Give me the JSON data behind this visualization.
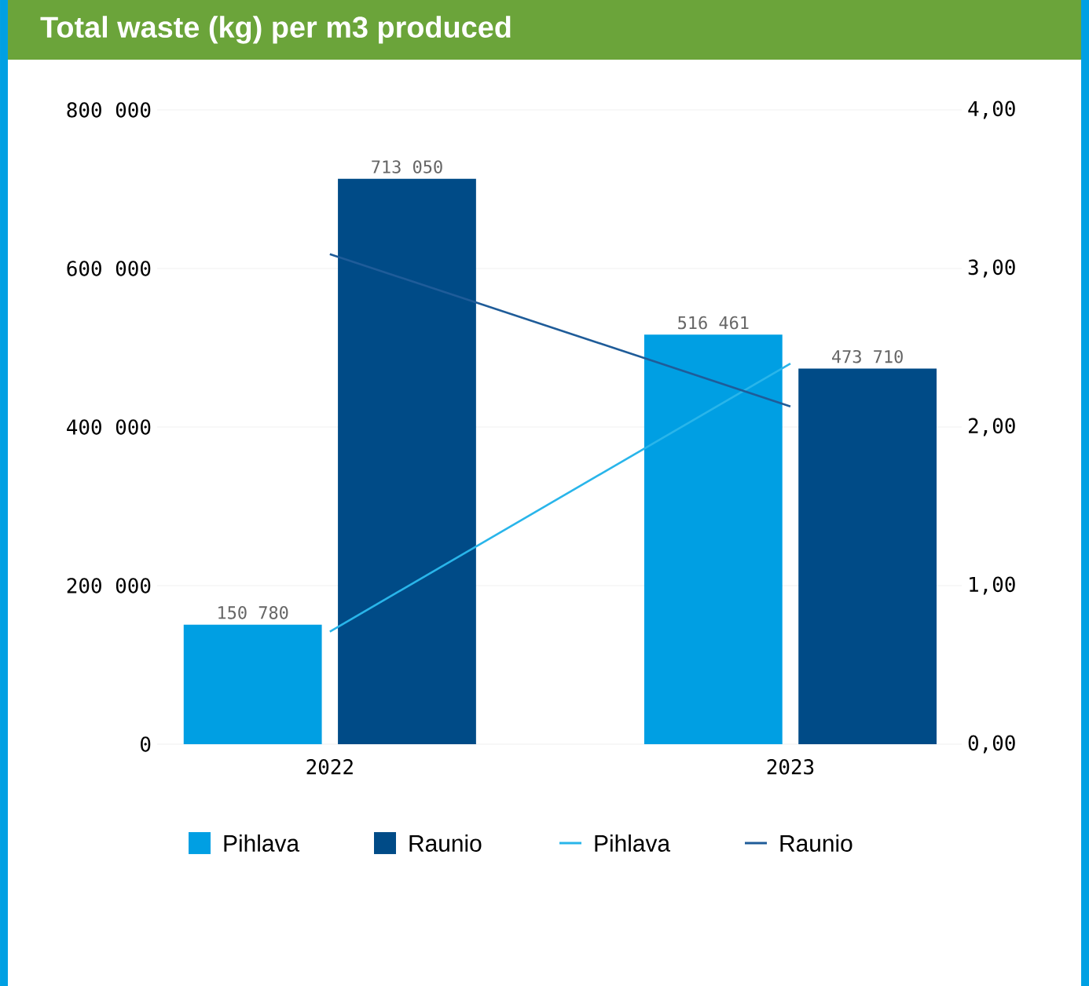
{
  "chart_data": {
    "type": "bar",
    "title": "Total waste (kg) per m3 produced",
    "categories": [
      "2022",
      "2023"
    ],
    "series": [
      {
        "name": "Pihlava",
        "color": "#009fe3",
        "values": [
          150780,
          516461
        ],
        "value_labels": [
          "150 780",
          "516 461"
        ]
      },
      {
        "name": "Raunio",
        "color": "#004b87",
        "values": [
          713050,
          473710
        ],
        "value_labels": [
          "713 050",
          "473 710"
        ]
      },
      {
        "name": "Pihlava",
        "type": "line",
        "axis": "y2",
        "color": "#29b5ea",
        "values": [
          0.71,
          2.4
        ]
      },
      {
        "name": "Raunio",
        "type": "line",
        "axis": "y2",
        "color": "#1f5c99",
        "values": [
          3.09,
          2.13
        ]
      }
    ],
    "ylim": [
      0,
      800000
    ],
    "yticks": [
      {
        "value": 0,
        "label": "0"
      },
      {
        "value": 200000,
        "label": "200 000"
      },
      {
        "value": 400000,
        "label": "400 000"
      },
      {
        "value": 600000,
        "label": "600 000"
      },
      {
        "value": 800000,
        "label": "800 000"
      }
    ],
    "y2lim": [
      0,
      4
    ],
    "y2ticks": [
      {
        "value": 0,
        "label": "0,00"
      },
      {
        "value": 1,
        "label": "1,00"
      },
      {
        "value": 2,
        "label": "2,00"
      },
      {
        "value": 3,
        "label": "3,00"
      },
      {
        "value": 4,
        "label": "4,00"
      }
    ],
    "grid": "y",
    "legend": "bottom",
    "marker": "none",
    "line_style": "solid"
  }
}
